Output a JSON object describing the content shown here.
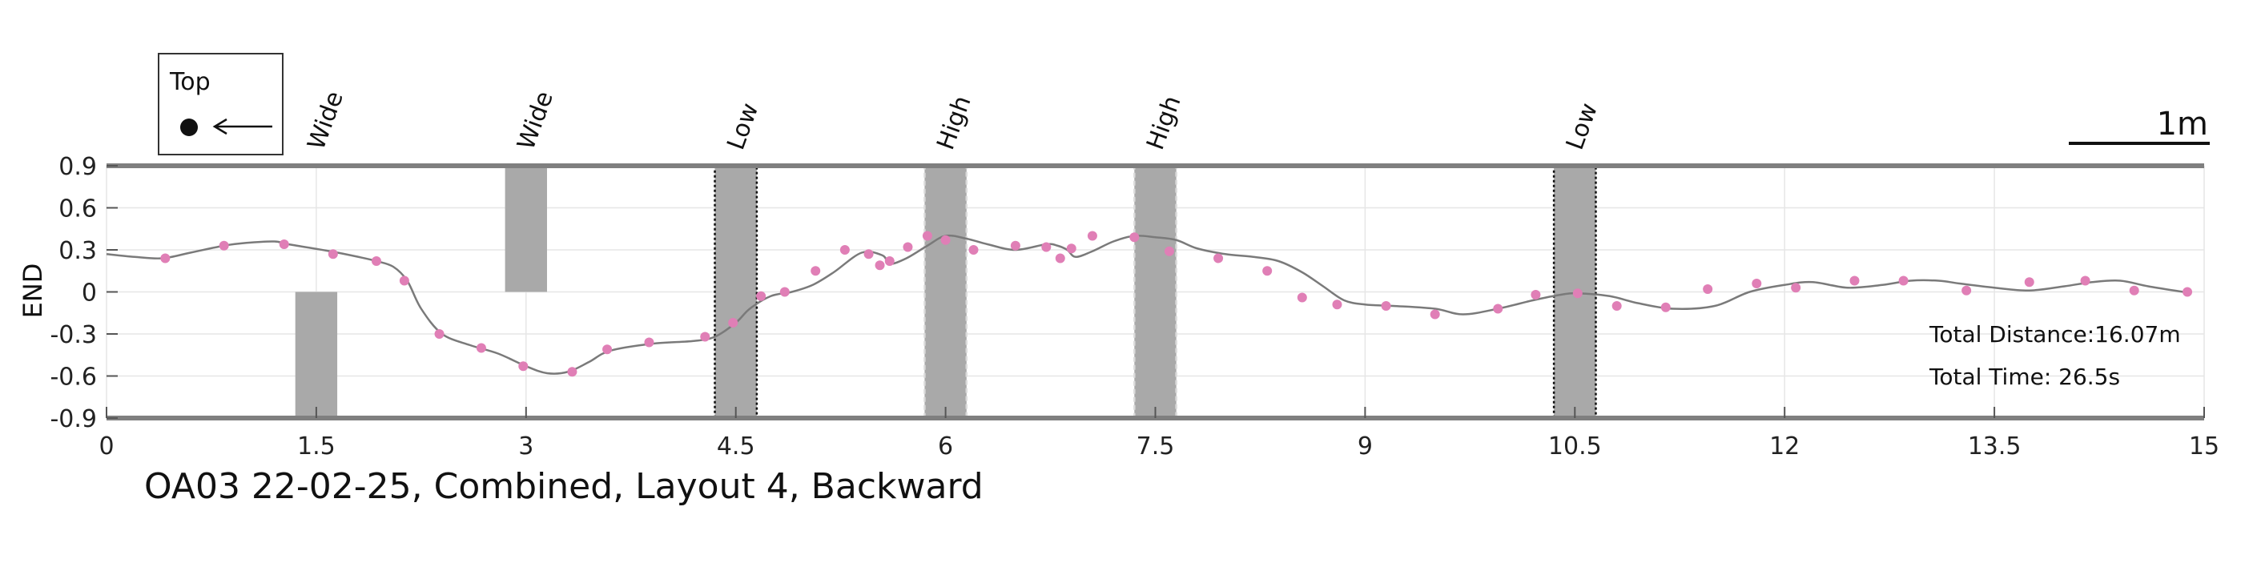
{
  "chart_data": {
    "type": "line",
    "title": "OA03 22-02-25, Combined, Layout 4, Backward",
    "ylabel": "END",
    "xlabel": "",
    "xlim": [
      0,
      15
    ],
    "ylim": [
      -0.9,
      0.9
    ],
    "x_ticks": [
      "0",
      "1.5",
      "3",
      "4.5",
      "6",
      "7.5",
      "9",
      "10.5",
      "12",
      "13.5",
      "15"
    ],
    "y_ticks": [
      "0.9",
      "0.6",
      "0.3",
      "0",
      "-0.3",
      "-0.6",
      "-0.9"
    ],
    "grid": true,
    "colors": {
      "line": "#7a7a7a",
      "points": "#e07fb6",
      "shade": "#a9a9a9",
      "frame": "#7f7f7f"
    },
    "legend": {
      "label": "Top",
      "marker": "filled-circle-with-left-arrow",
      "position": "top-left"
    },
    "scale_bar": {
      "label": "1m",
      "position": "top-right"
    },
    "annotations": {
      "total_distance": "Total Distance:16.07m",
      "total_time": "Total Time: 26.5s"
    },
    "obstacles": [
      {
        "label": "Wide",
        "x0": 1.35,
        "x1": 1.65,
        "y0": -0.9,
        "y1": 0.0,
        "style": "plain"
      },
      {
        "label": "Wide",
        "x0": 2.85,
        "x1": 3.15,
        "y0": 0.0,
        "y1": 0.9,
        "style": "plain"
      },
      {
        "label": "Low",
        "x0": 4.35,
        "x1": 4.65,
        "y0": -0.9,
        "y1": 0.9,
        "style": "dotted-dark"
      },
      {
        "label": "High",
        "x0": 5.85,
        "x1": 6.15,
        "y0": -0.9,
        "y1": 0.9,
        "style": "dashed-light"
      },
      {
        "label": "High",
        "x0": 7.35,
        "x1": 7.65,
        "y0": -0.9,
        "y1": 0.9,
        "style": "dashed-light"
      },
      {
        "label": "Low",
        "x0": 10.35,
        "x1": 10.65,
        "y0": -0.9,
        "y1": 0.9,
        "style": "dotted-dark"
      }
    ],
    "series": [
      {
        "curve": {
          "x": [
            0.0,
            0.2,
            0.4,
            0.6,
            0.84,
            1.0,
            1.2,
            1.3,
            1.6,
            1.8,
            1.93,
            2.05,
            2.15,
            2.25,
            2.4,
            2.6,
            2.8,
            3.0,
            3.15,
            3.3,
            3.45,
            3.6,
            3.9,
            4.2,
            4.35,
            4.5,
            4.6,
            4.75,
            4.9,
            5.05,
            5.2,
            5.4,
            5.55,
            5.6,
            5.72,
            5.87,
            6.0,
            6.15,
            6.3,
            6.5,
            6.72,
            6.8,
            6.87,
            6.93,
            7.05,
            7.2,
            7.35,
            7.5,
            7.65,
            7.8,
            8.0,
            8.2,
            8.38,
            8.55,
            8.7,
            8.85,
            9.0,
            9.2,
            9.5,
            9.7,
            9.95,
            10.2,
            10.4,
            10.52,
            10.75,
            10.95,
            11.2,
            11.5,
            11.75,
            12.0,
            12.2,
            12.45,
            12.7,
            12.9,
            13.1,
            13.25,
            13.5,
            13.75,
            14.0,
            14.2,
            14.4,
            14.6,
            14.85
          ],
          "y": [
            0.27,
            0.25,
            0.24,
            0.28,
            0.33,
            0.35,
            0.36,
            0.34,
            0.29,
            0.25,
            0.22,
            0.18,
            0.08,
            -0.12,
            -0.3,
            -0.38,
            -0.44,
            -0.53,
            -0.58,
            -0.57,
            -0.5,
            -0.42,
            -0.37,
            -0.35,
            -0.32,
            -0.22,
            -0.12,
            -0.03,
            0.0,
            0.05,
            0.14,
            0.28,
            0.26,
            0.2,
            0.24,
            0.33,
            0.4,
            0.38,
            0.34,
            0.3,
            0.34,
            0.33,
            0.3,
            0.25,
            0.29,
            0.36,
            0.4,
            0.39,
            0.37,
            0.31,
            0.27,
            0.25,
            0.22,
            0.14,
            0.04,
            -0.06,
            -0.09,
            -0.1,
            -0.12,
            -0.16,
            -0.12,
            -0.06,
            -0.02,
            -0.01,
            -0.03,
            -0.08,
            -0.12,
            -0.1,
            0.0,
            0.05,
            0.07,
            0.03,
            0.05,
            0.08,
            0.08,
            0.06,
            0.03,
            0.01,
            0.04,
            0.07,
            0.08,
            0.04,
            0.0
          ]
        },
        "points": {
          "x": [
            0.42,
            0.84,
            1.27,
            1.62,
            1.93,
            2.13,
            2.38,
            2.68,
            2.98,
            3.33,
            3.58,
            3.88,
            4.28,
            4.48,
            4.68,
            4.85,
            5.07,
            5.28,
            5.45,
            5.53,
            5.6,
            5.73,
            5.87,
            6.0,
            6.2,
            6.5,
            6.72,
            6.82,
            6.9,
            7.05,
            7.35,
            7.6,
            7.95,
            8.3,
            8.55,
            8.8,
            9.15,
            9.5,
            9.95,
            10.22,
            10.52,
            10.8,
            11.15,
            11.45,
            11.8,
            12.08,
            12.5,
            12.85,
            13.3,
            13.75,
            14.15,
            14.5,
            14.88
          ],
          "y": [
            0.24,
            0.33,
            0.34,
            0.27,
            0.22,
            0.08,
            -0.3,
            -0.4,
            -0.53,
            -0.57,
            -0.41,
            -0.36,
            -0.32,
            -0.22,
            -0.03,
            0.0,
            0.15,
            0.3,
            0.27,
            0.19,
            0.22,
            0.32,
            0.4,
            0.37,
            0.3,
            0.33,
            0.32,
            0.24,
            0.31,
            0.4,
            0.39,
            0.29,
            0.24,
            0.15,
            -0.04,
            -0.09,
            -0.1,
            -0.16,
            -0.12,
            -0.02,
            -0.01,
            -0.1,
            -0.11,
            0.02,
            0.06,
            0.03,
            0.08,
            0.08,
            0.01,
            0.07,
            0.08,
            0.01,
            0.0
          ]
        }
      }
    ]
  }
}
